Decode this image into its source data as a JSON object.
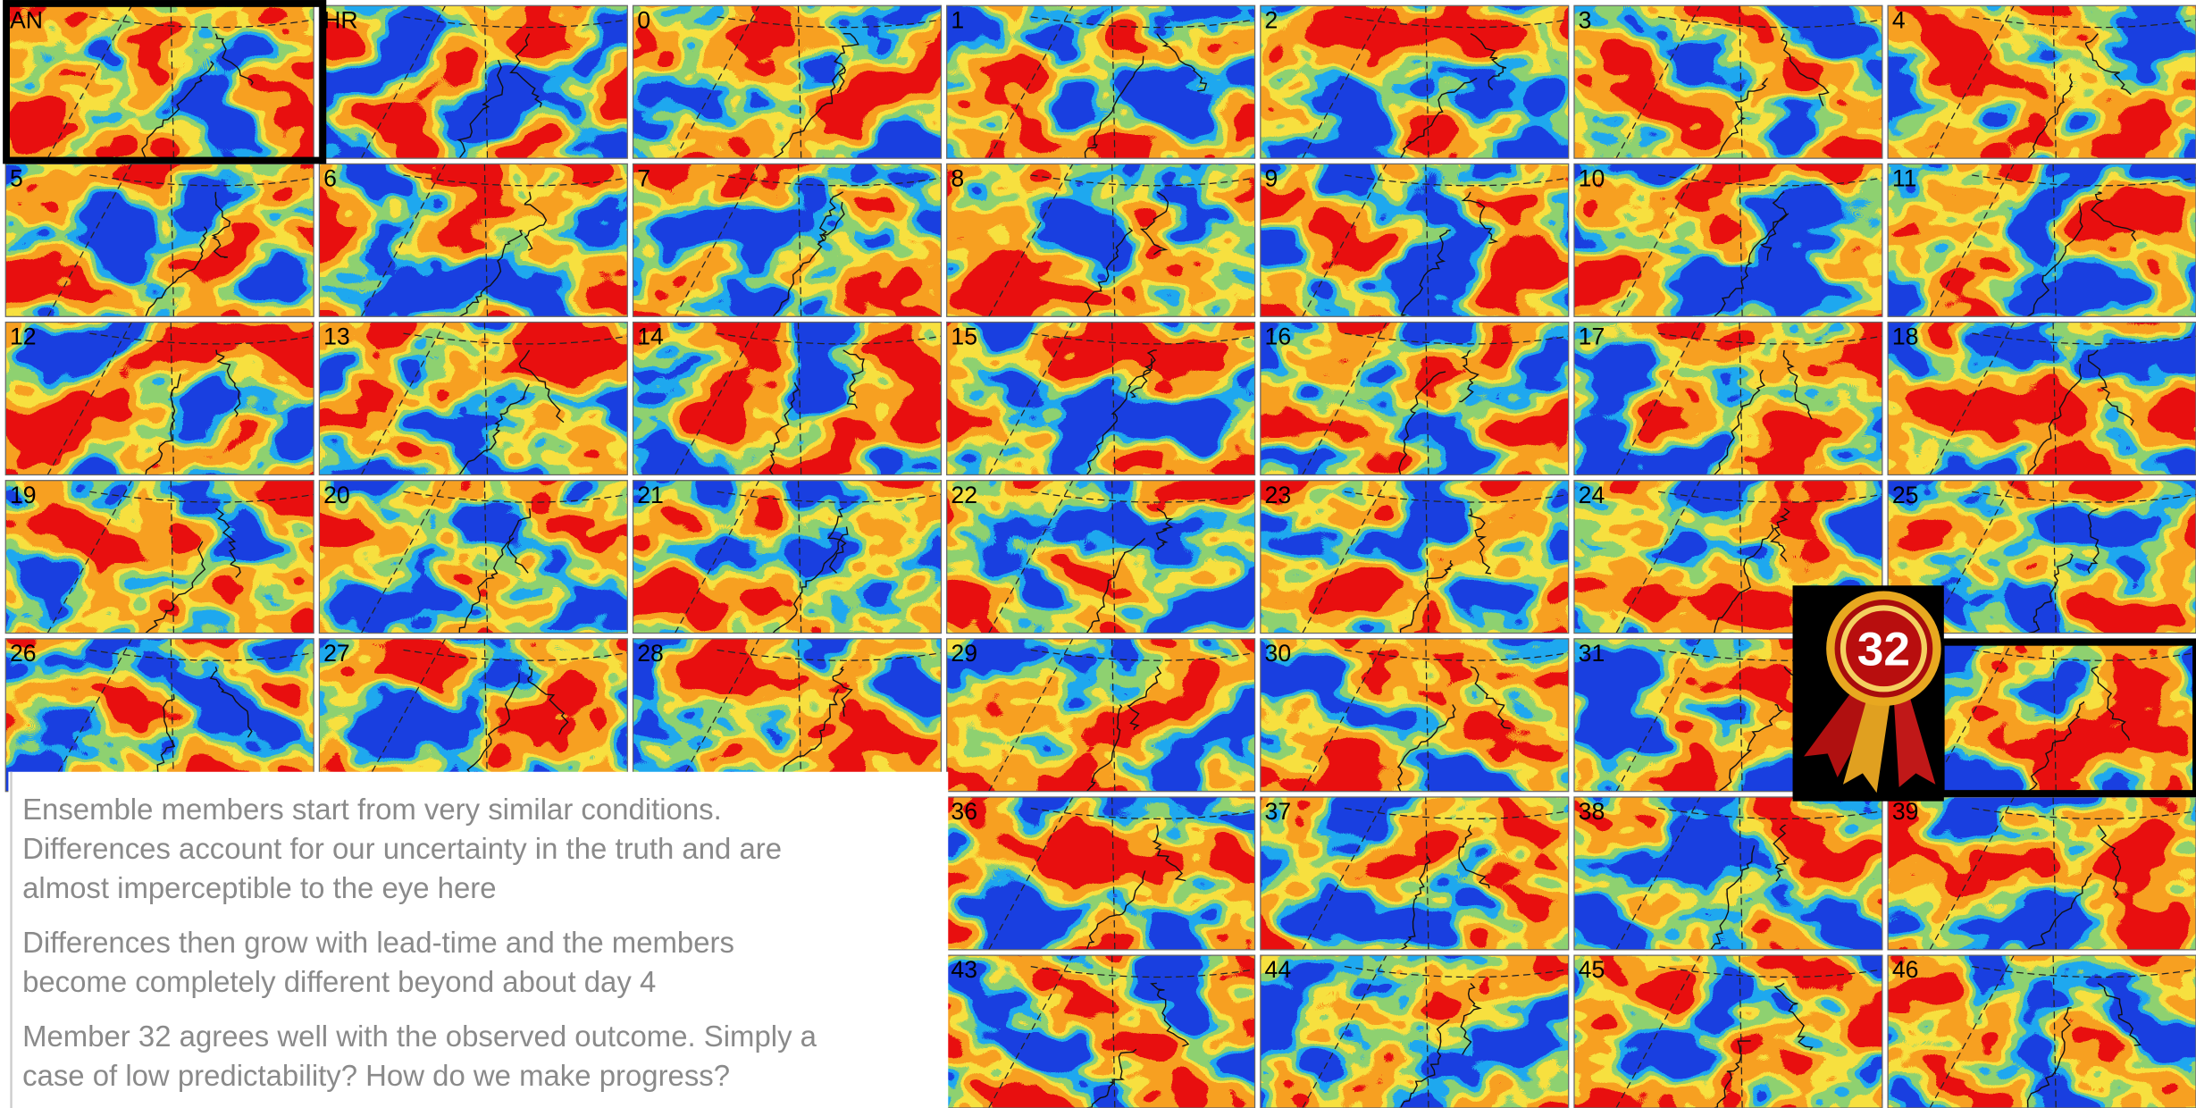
{
  "panels": [
    "AN",
    "HR",
    "0",
    "1",
    "2",
    "3",
    "4",
    "5",
    "6",
    "7",
    "8",
    "9",
    "10",
    "11",
    "12",
    "13",
    "14",
    "15",
    "16",
    "17",
    "18",
    "19",
    "20",
    "21",
    "22",
    "23",
    "24",
    "25",
    "26",
    "27",
    "28",
    "29",
    "30",
    "31",
    "36",
    "37",
    "38",
    "39",
    "43",
    "44",
    "45",
    "46"
  ],
  "badge": "32",
  "notes": [
    [
      "Ensemble members start from very similar conditions.",
      "Differences account for our uncertainty in the truth and are",
      "almost imperceptible to the eye here"
    ],
    [
      "Differences then grow with lead-time and the members",
      "become completely different beyond about day 4"
    ],
    [
      "Member 32 agrees well with the observed outcome. Simply a",
      "case of low predictability? How do we make progress?"
    ]
  ]
}
